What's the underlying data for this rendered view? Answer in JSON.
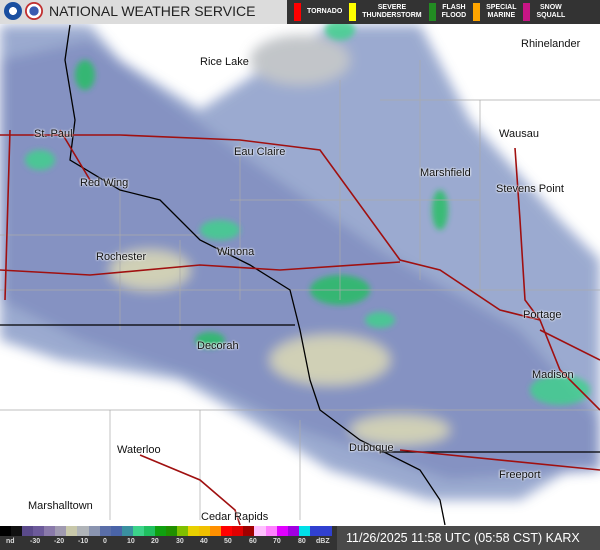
{
  "header": {
    "title": "NATIONAL WEATHER SERVICE",
    "warnings": [
      {
        "label": "TORNADO",
        "color": "#ff0000"
      },
      {
        "label": "SEVERE\nTHUNDERSTORM",
        "color": "#ffff00"
      },
      {
        "label": "FLASH\nFLOOD",
        "color": "#228b22"
      },
      {
        "label": "SPECIAL\nMARINE",
        "color": "#ffa500"
      },
      {
        "label": "SNOW\nSQUALL",
        "color": "#c71585"
      }
    ]
  },
  "cities": [
    "Rhinelander",
    "Rice Lake",
    "Wausau",
    "St. Paul",
    "Eau Claire",
    "Marshfield",
    "Red Wing",
    "Stevens Point",
    "Winona",
    "Rochester",
    "Portage",
    "Decorah",
    "Madison",
    "Dubuque",
    "Waterloo",
    "Freeport",
    "Marshalltown",
    "Cedar Rapids"
  ],
  "legend": {
    "ticks": [
      "nd",
      "-30",
      "-20",
      "-10",
      "0",
      "10",
      "20",
      "30",
      "40",
      "50",
      "60",
      "70",
      "80",
      "dBZ"
    ],
    "colors": [
      "#000",
      "#111",
      "#5a4a8a",
      "#6c5a9a",
      "#8a7aaa",
      "#a09ab0",
      "#c8c8aa",
      "#b0b4b8",
      "#8a94b0",
      "#5a6ea8",
      "#4a64a8",
      "#3a90a0",
      "#3cd38a",
      "#20c060",
      "#10a010",
      "#209000",
      "#80c000",
      "#e8d000",
      "#f0c000",
      "#ff9000",
      "#ff0000",
      "#e00000",
      "#a00000",
      "#ffc0ff",
      "#ff80ff",
      "#e000ff",
      "#a000e0",
      "#00e0e8",
      "#3040d0",
      "#3040d0"
    ]
  },
  "timestamp": "11/26/2025 11:58 UTC (05:58 CST) KARX"
}
